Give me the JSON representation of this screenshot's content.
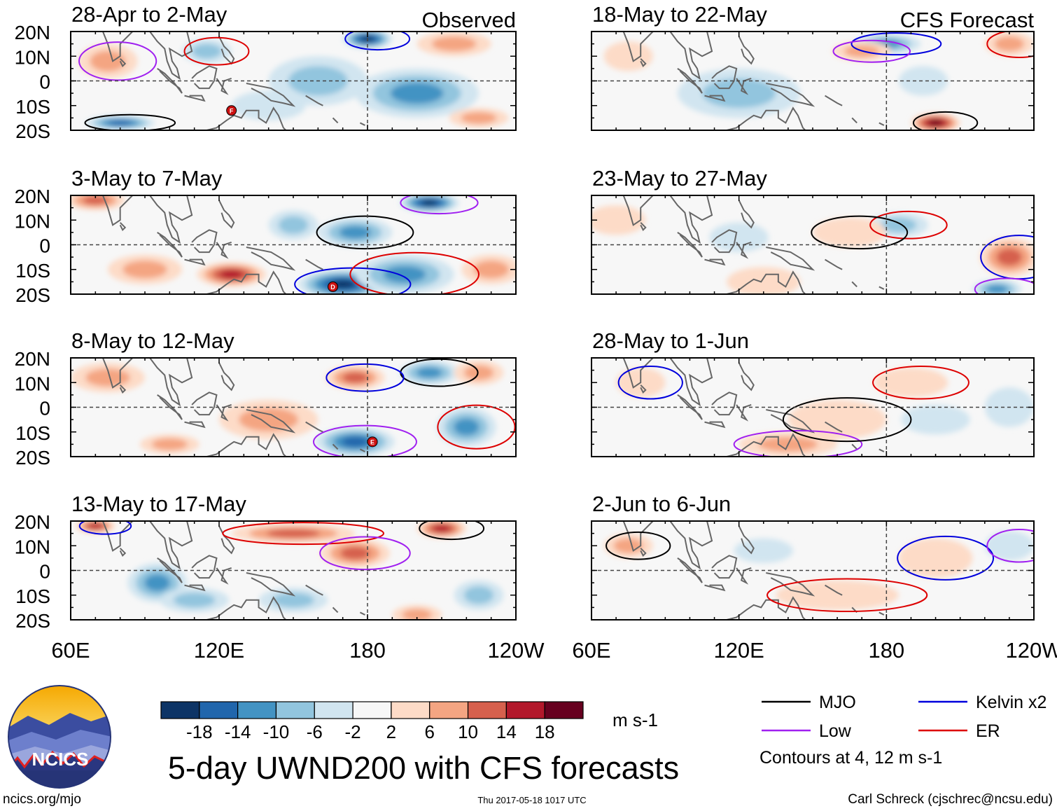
{
  "chart_data": {
    "type": "heatmap",
    "title": "5-day UWND200 with CFS forecasts",
    "variable": "200 hPa zonal wind anomaly",
    "units": "m s-1",
    "x_ticks": [
      "60E",
      "120E",
      "180",
      "120W"
    ],
    "y_ticks": [
      "20N",
      "10N",
      "0",
      "10S",
      "20S"
    ],
    "x_range": [
      60,
      240
    ],
    "y_range": [
      -20,
      20
    ],
    "column_labels": {
      "observed": "Observed",
      "forecast": "CFS Forecast"
    },
    "colorbar": {
      "levels": [
        "-18",
        "-14",
        "-10",
        "-6",
        "-2",
        "2",
        "6",
        "10",
        "14",
        "18"
      ],
      "colors": [
        "#0d3466",
        "#2166ac",
        "#4393c3",
        "#92c5de",
        "#d1e5f0",
        "#f7f7f7",
        "#fddbc7",
        "#f4a582",
        "#d6604d",
        "#b2182b",
        "#67001f"
      ],
      "units_label": "m s-1"
    },
    "panels": [
      {
        "label": "28-Apr to 2-May",
        "column": "observed",
        "blobs": [
          [
            80,
            -17,
            14,
            3,
            -14
          ],
          [
            180,
            17,
            10,
            4,
            -18
          ],
          [
            75,
            8,
            12,
            7,
            6
          ],
          [
            115,
            12,
            10,
            5,
            -6
          ],
          [
            200,
            -5,
            25,
            10,
            -8
          ],
          [
            160,
            0,
            20,
            10,
            -5
          ],
          [
            215,
            15,
            15,
            5,
            6
          ],
          [
            225,
            -15,
            12,
            4,
            4
          ],
          [
            140,
            -10,
            15,
            6,
            -3
          ]
        ],
        "storms": [
          {
            "id": "F",
            "lon": 125,
            "lat": -12
          }
        ]
      },
      {
        "label": "3-May to 7-May",
        "column": "observed",
        "blobs": [
          [
            170,
            -16,
            18,
            6,
            -18
          ],
          [
            205,
            17,
            12,
            4,
            -18
          ],
          [
            195,
            -12,
            20,
            8,
            -10
          ],
          [
            175,
            5,
            15,
            6,
            -9
          ],
          [
            125,
            -12,
            14,
            5,
            12
          ],
          [
            70,
            18,
            12,
            4,
            10
          ],
          [
            230,
            -10,
            12,
            6,
            4
          ],
          [
            90,
            -10,
            15,
            6,
            5
          ],
          [
            150,
            8,
            10,
            6,
            -4
          ]
        ],
        "storms": [
          {
            "id": "D",
            "lon": 166,
            "lat": -17
          }
        ]
      },
      {
        "label": "8-May to 12-May",
        "column": "observed",
        "blobs": [
          [
            175,
            -14,
            16,
            6,
            -14
          ],
          [
            220,
            -8,
            12,
            8,
            -10
          ],
          [
            205,
            14,
            12,
            5,
            -9
          ],
          [
            175,
            12,
            12,
            5,
            10
          ],
          [
            75,
            12,
            15,
            6,
            6
          ],
          [
            140,
            -5,
            20,
            8,
            4
          ],
          [
            225,
            14,
            10,
            5,
            4
          ],
          [
            100,
            -15,
            12,
            4,
            5
          ]
        ],
        "storms": [
          {
            "id": "E",
            "lon": 182,
            "lat": -14
          }
        ]
      },
      {
        "label": "13-May to 17-May",
        "column": "observed",
        "blobs": [
          [
            150,
            15,
            25,
            4,
            10
          ],
          [
            210,
            17,
            10,
            4,
            14
          ],
          [
            70,
            18,
            8,
            3,
            14
          ],
          [
            175,
            7,
            14,
            6,
            9
          ],
          [
            95,
            -5,
            12,
            8,
            -8
          ],
          [
            110,
            -12,
            14,
            5,
            -4
          ],
          [
            150,
            -12,
            14,
            5,
            -4
          ],
          [
            200,
            -18,
            10,
            4,
            6
          ],
          [
            225,
            -10,
            10,
            6,
            -4
          ]
        ],
        "storms": []
      },
      {
        "label": "18-May to 22-May",
        "column": "forecast",
        "blobs": [
          [
            200,
            -17,
            10,
            4,
            18
          ],
          [
            180,
            15,
            14,
            4,
            -10
          ],
          [
            170,
            12,
            12,
            4,
            6
          ],
          [
            230,
            15,
            10,
            5,
            6
          ],
          [
            120,
            -5,
            25,
            10,
            -4
          ],
          [
            75,
            10,
            10,
            6,
            3
          ],
          [
            195,
            0,
            10,
            6,
            -3
          ]
        ],
        "storms": []
      },
      {
        "label": "23-May to 27-May",
        "column": "forecast",
        "blobs": [
          [
            230,
            -5,
            12,
            8,
            8
          ],
          [
            225,
            -18,
            10,
            4,
            -10
          ],
          [
            185,
            8,
            12,
            5,
            -4
          ],
          [
            165,
            5,
            15,
            6,
            3
          ],
          [
            70,
            10,
            12,
            6,
            3
          ],
          [
            130,
            -15,
            15,
            6,
            3
          ],
          [
            120,
            3,
            12,
            6,
            -3
          ]
        ],
        "storms": []
      },
      {
        "label": "28-May to 1-Jun",
        "column": "forecast",
        "blobs": [
          [
            140,
            -15,
            20,
            5,
            6
          ],
          [
            190,
            10,
            15,
            6,
            3
          ],
          [
            160,
            -5,
            20,
            8,
            3
          ],
          [
            80,
            10,
            10,
            6,
            3
          ],
          [
            200,
            -5,
            14,
            6,
            -3
          ],
          [
            230,
            0,
            10,
            8,
            -3
          ]
        ],
        "storms": []
      },
      {
        "label": "2-Jun to 6-Jun",
        "column": "forecast",
        "blobs": [
          [
            160,
            -10,
            25,
            6,
            3
          ],
          [
            75,
            10,
            10,
            5,
            4
          ],
          [
            200,
            5,
            15,
            8,
            3
          ],
          [
            230,
            10,
            10,
            6,
            -3
          ],
          [
            130,
            8,
            12,
            5,
            -3
          ]
        ],
        "storms": []
      }
    ],
    "legend": [
      {
        "label": "MJO",
        "color": "#000000"
      },
      {
        "label": "Kelvin x2",
        "color": "#0000dd"
      },
      {
        "label": "Low",
        "color": "#a020f0"
      },
      {
        "label": "ER",
        "color": "#dd0000"
      }
    ],
    "contour_note": "Contours at 4, 12 m s-1"
  },
  "footer": {
    "logo_text": "NCICS",
    "url": "ncics.org/mjo",
    "timestamp": "Thu 2017-05-18 1017 UTC",
    "credit": "Carl Schreck (cjschrec@ncsu.edu)"
  }
}
